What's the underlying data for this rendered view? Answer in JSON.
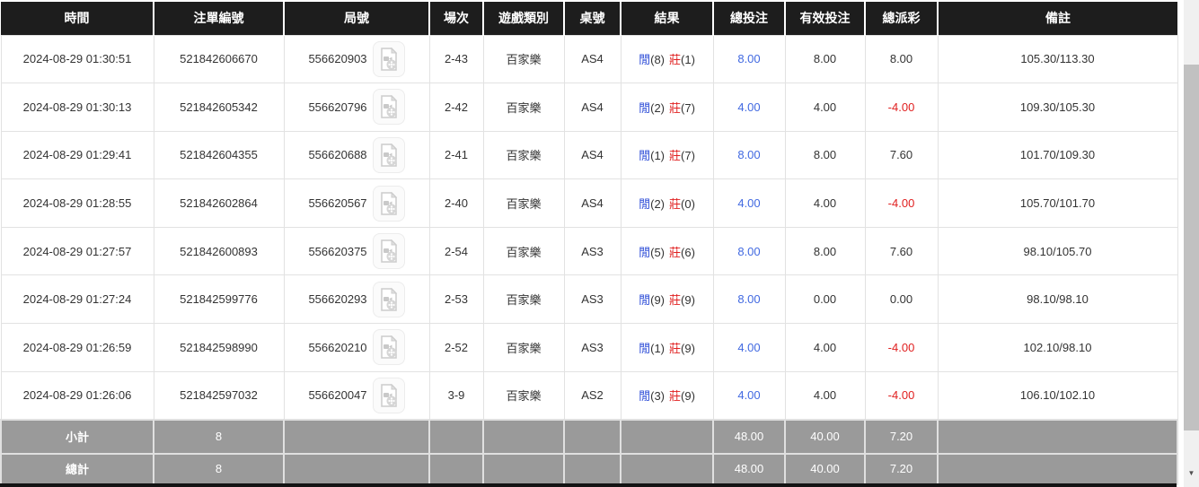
{
  "colors": {
    "header_bg": "#1d1d1d",
    "header_text": "#ffffff",
    "row_bg": "#ffffff",
    "text": "#333333",
    "grid_border": "#e2e2e2",
    "blue": "#2b4bd7",
    "amount_blue": "#4169e1",
    "red": "#e01f1f",
    "footer_bg": "#9a9a9a",
    "footer_text": "#ffffff",
    "scrollbar_track": "#f0f0f0",
    "scrollbar_thumb": "#c1c1c1"
  },
  "icons": {
    "video_replay": "video-file-icon",
    "scroll_down_glyph": "▼"
  },
  "table": {
    "columns": [
      {
        "key": "time",
        "label": "時間"
      },
      {
        "key": "bet_id",
        "label": "注單編號"
      },
      {
        "key": "round",
        "label": "局號"
      },
      {
        "key": "session",
        "label": "場次"
      },
      {
        "key": "game_type",
        "label": "遊戲類別"
      },
      {
        "key": "table_no",
        "label": "桌號"
      },
      {
        "key": "result",
        "label": "結果"
      },
      {
        "key": "total_bet",
        "label": "總投注"
      },
      {
        "key": "valid_bet",
        "label": "有效投注"
      },
      {
        "key": "payout",
        "label": "總派彩"
      },
      {
        "key": "remark",
        "label": "備註"
      }
    ],
    "rows": [
      {
        "time": "2024-08-29 01:30:51",
        "bet_id": "521842606670",
        "round_id": "556620903",
        "session": "2-43",
        "game": "百家樂",
        "table_no": "AS4",
        "result": {
          "player_label": "閒",
          "player_score": "(8)",
          "banker_label": "莊",
          "banker_score": "(1)"
        },
        "total_bet": "8.00",
        "valid_bet": "8.00",
        "payout": "8.00",
        "remark": "105.30/113.30"
      },
      {
        "time": "2024-08-29 01:30:13",
        "bet_id": "521842605342",
        "round_id": "556620796",
        "session": "2-42",
        "game": "百家樂",
        "table_no": "AS4",
        "result": {
          "player_label": "閒",
          "player_score": "(2)",
          "banker_label": "莊",
          "banker_score": "(7)"
        },
        "total_bet": "4.00",
        "valid_bet": "4.00",
        "payout": "-4.00",
        "remark": "109.30/105.30"
      },
      {
        "time": "2024-08-29 01:29:41",
        "bet_id": "521842604355",
        "round_id": "556620688",
        "session": "2-41",
        "game": "百家樂",
        "table_no": "AS4",
        "result": {
          "player_label": "閒",
          "player_score": "(1)",
          "banker_label": "莊",
          "banker_score": "(7)"
        },
        "total_bet": "8.00",
        "valid_bet": "8.00",
        "payout": "7.60",
        "remark": "101.70/109.30"
      },
      {
        "time": "2024-08-29 01:28:55",
        "bet_id": "521842602864",
        "round_id": "556620567",
        "session": "2-40",
        "game": "百家樂",
        "table_no": "AS4",
        "result": {
          "player_label": "閒",
          "player_score": "(2)",
          "banker_label": "莊",
          "banker_score": "(0)"
        },
        "total_bet": "4.00",
        "valid_bet": "4.00",
        "payout": "-4.00",
        "remark": "105.70/101.70"
      },
      {
        "time": "2024-08-29 01:27:57",
        "bet_id": "521842600893",
        "round_id": "556620375",
        "session": "2-54",
        "game": "百家樂",
        "table_no": "AS3",
        "result": {
          "player_label": "閒",
          "player_score": "(5)",
          "banker_label": "莊",
          "banker_score": "(6)"
        },
        "total_bet": "8.00",
        "valid_bet": "8.00",
        "payout": "7.60",
        "remark": "98.10/105.70"
      },
      {
        "time": "2024-08-29 01:27:24",
        "bet_id": "521842599776",
        "round_id": "556620293",
        "session": "2-53",
        "game": "百家樂",
        "table_no": "AS3",
        "result": {
          "player_label": "閒",
          "player_score": "(9)",
          "banker_label": "莊",
          "banker_score": "(9)"
        },
        "total_bet": "8.00",
        "valid_bet": "0.00",
        "payout": "0.00",
        "remark": "98.10/98.10"
      },
      {
        "time": "2024-08-29 01:26:59",
        "bet_id": "521842598990",
        "round_id": "556620210",
        "session": "2-52",
        "game": "百家樂",
        "table_no": "AS3",
        "result": {
          "player_label": "閒",
          "player_score": "(1)",
          "banker_label": "莊",
          "banker_score": "(9)"
        },
        "total_bet": "4.00",
        "valid_bet": "4.00",
        "payout": "-4.00",
        "remark": "102.10/98.10"
      },
      {
        "time": "2024-08-29 01:26:06",
        "bet_id": "521842597032",
        "round_id": "556620047",
        "session": "3-9",
        "game": "百家樂",
        "table_no": "AS2",
        "result": {
          "player_label": "閒",
          "player_score": "(3)",
          "banker_label": "莊",
          "banker_score": "(9)"
        },
        "total_bet": "4.00",
        "valid_bet": "4.00",
        "payout": "-4.00",
        "remark": "106.10/102.10"
      }
    ],
    "subtotal": {
      "label": "小計",
      "count": "8",
      "total_bet": "48.00",
      "valid_bet": "40.00",
      "payout": "7.20"
    },
    "total": {
      "label": "總計",
      "count": "8",
      "total_bet": "48.00",
      "valid_bet": "40.00",
      "payout": "7.20"
    }
  }
}
